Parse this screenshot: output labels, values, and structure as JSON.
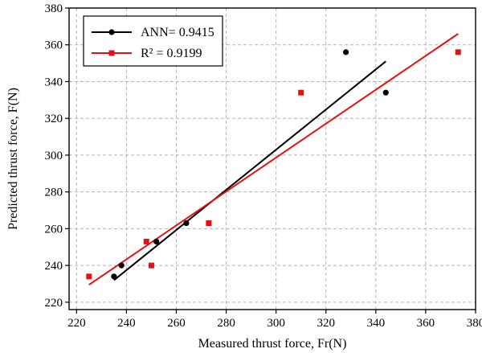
{
  "chart_data": {
    "type": "scatter",
    "xlabel": "Measured thrust force, Fr(N)",
    "ylabel": "Predicted thrust force, F(N)",
    "xlim": [
      217,
      380
    ],
    "ylim": [
      216,
      380
    ],
    "xticks": [
      220,
      240,
      260,
      280,
      300,
      320,
      340,
      360,
      380
    ],
    "yticks": [
      220,
      240,
      260,
      280,
      300,
      320,
      340,
      360,
      380
    ],
    "grid": true,
    "legend_position": "top-left",
    "series": [
      {
        "name": "ANN= 0.9415",
        "color": "#000000",
        "marker": "circle",
        "points": [
          {
            "x": 235,
            "y": 234
          },
          {
            "x": 238,
            "y": 240
          },
          {
            "x": 252,
            "y": 253
          },
          {
            "x": 264,
            "y": 263
          },
          {
            "x": 328,
            "y": 356
          },
          {
            "x": 344,
            "y": 334
          }
        ],
        "fit_line": {
          "x": [
            235,
            344
          ],
          "y": [
            232,
            351
          ]
        }
      },
      {
        "name": "R² = 0.9199",
        "color": "#e8100f",
        "marker": "square",
        "points": [
          {
            "x": 225,
            "y": 234
          },
          {
            "x": 248,
            "y": 253
          },
          {
            "x": 250,
            "y": 240
          },
          {
            "x": 273,
            "y": 263
          },
          {
            "x": 310,
            "y": 334
          },
          {
            "x": 373,
            "y": 356
          }
        ],
        "fit_line": {
          "x": [
            225,
            373
          ],
          "y": [
            229.5,
            366
          ]
        }
      }
    ]
  }
}
